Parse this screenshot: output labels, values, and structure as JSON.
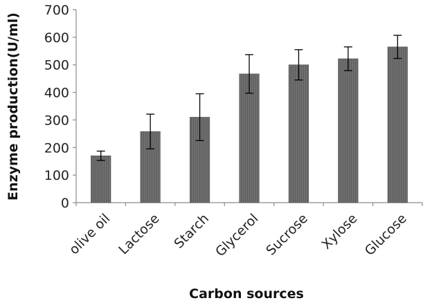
{
  "chart_data": {
    "type": "bar",
    "xlabel": "Carbon sources",
    "ylabel": "Enzyme production(U/ml)",
    "categories": [
      "olive oil",
      "Lactose",
      "Starch",
      "Glycerol",
      "Sucrose",
      "Xylose",
      "Glucose"
    ],
    "values": [
      170,
      258,
      310,
      467,
      500,
      522,
      565
    ],
    "errors": [
      17,
      63,
      85,
      70,
      55,
      43,
      42
    ],
    "ylim": [
      0,
      700
    ],
    "yticks": [
      0,
      100,
      200,
      300,
      400,
      500,
      600,
      700
    ],
    "grid": false,
    "legend": "none",
    "bar_color": "#6e6e6e",
    "bar_stripe_color": "#5a5a5a"
  }
}
